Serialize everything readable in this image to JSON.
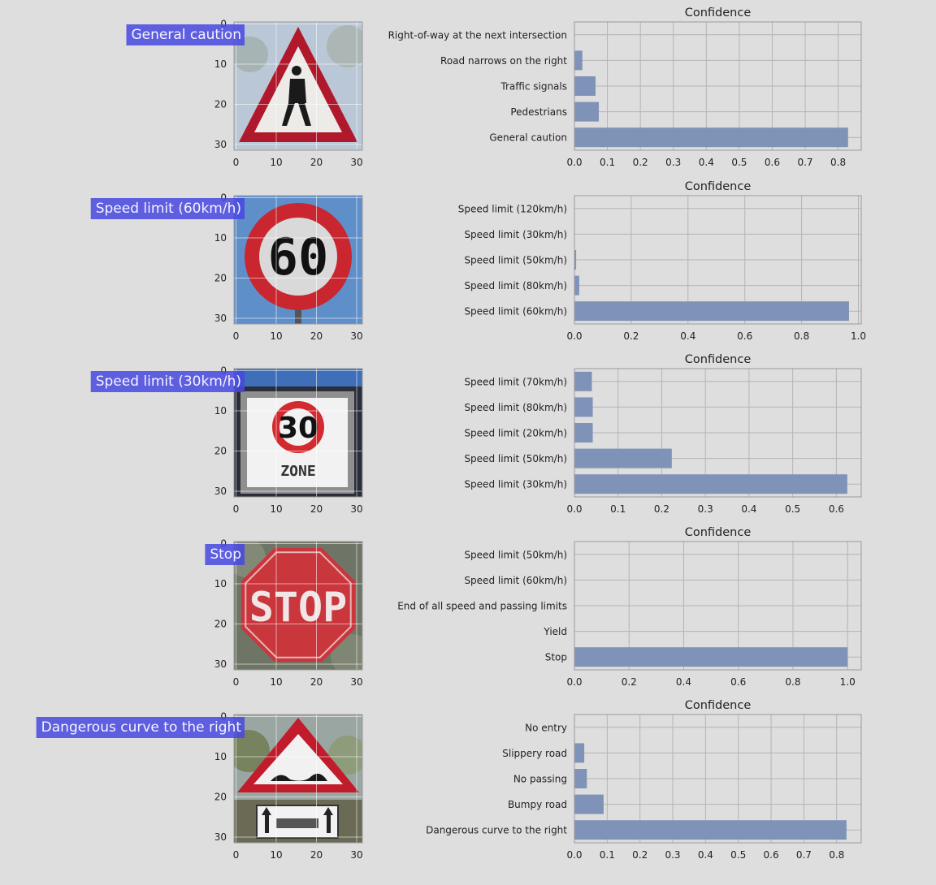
{
  "colors": {
    "background": "#dedede",
    "bar": "#7f93b8",
    "grid": "#b4b4b4",
    "label_bg": "#4848e0"
  },
  "chart_data": [
    {
      "type": "bar",
      "orientation": "horizontal",
      "title": "Confidence",
      "image_label": "General caution",
      "sign": "pedestrian-warning-triangle",
      "image_ticks": [
        "0",
        "10",
        "20",
        "30"
      ],
      "categories": [
        "General caution",
        "Pedestrians",
        "Traffic signals",
        "Road narrows on the right",
        "Right-of-way at the next intersection"
      ],
      "values": [
        0.83,
        0.074,
        0.064,
        0.024,
        0.0
      ],
      "xlim": [
        0,
        0.87
      ],
      "xticks": [
        0.0,
        0.1,
        0.2,
        0.3,
        0.4,
        0.5,
        0.6,
        0.7,
        0.8
      ],
      "xtick_labels": [
        "0.0",
        "0.1",
        "0.2",
        "0.3",
        "0.4",
        "0.5",
        "0.6",
        "0.7",
        "0.8"
      ],
      "grid": true
    },
    {
      "type": "bar",
      "orientation": "horizontal",
      "title": "Confidence",
      "image_label": "Speed limit (60km/h)",
      "sign": "speed-limit-round",
      "sign_text": "60",
      "image_ticks": [
        "0",
        "10",
        "20",
        "30"
      ],
      "categories": [
        "Speed limit (60km/h)",
        "Speed limit (80km/h)",
        "Speed limit (50km/h)",
        "Speed limit (30km/h)",
        "Speed limit (120km/h)"
      ],
      "values": [
        0.967,
        0.017,
        0.006,
        0.0,
        0.0
      ],
      "xlim": [
        0,
        1.01
      ],
      "xticks": [
        0.0,
        0.2,
        0.4,
        0.6,
        0.8,
        1.0
      ],
      "xtick_labels": [
        "0.0",
        "0.2",
        "0.4",
        "0.6",
        "0.8",
        "1.0"
      ],
      "grid": true
    },
    {
      "type": "bar",
      "orientation": "horizontal",
      "title": "Confidence",
      "image_label": "Speed limit (30km/h)",
      "sign": "speed-limit-square",
      "sign_text": "30",
      "sign_subtext": "ZONE",
      "image_ticks": [
        "0",
        "10",
        "20",
        "30"
      ],
      "categories": [
        "Speed limit (30km/h)",
        "Speed limit (50km/h)",
        "Speed limit (20km/h)",
        "Speed limit (80km/h)",
        "Speed limit (70km/h)"
      ],
      "values": [
        0.625,
        0.223,
        0.042,
        0.042,
        0.04
      ],
      "xlim": [
        0,
        0.657
      ],
      "xticks": [
        0.0,
        0.1,
        0.2,
        0.3,
        0.4,
        0.5,
        0.6
      ],
      "xtick_labels": [
        "0.0",
        "0.1",
        "0.2",
        "0.3",
        "0.4",
        "0.5",
        "0.6"
      ],
      "grid": true
    },
    {
      "type": "bar",
      "orientation": "horizontal",
      "title": "Confidence",
      "image_label": "Stop",
      "sign": "stop-octagon",
      "sign_text": "STOP",
      "image_ticks": [
        "0",
        "10",
        "20",
        "30"
      ],
      "categories": [
        "Stop",
        "Yield",
        "End of all speed and passing limits",
        "Speed limit (60km/h)",
        "Speed limit (50km/h)"
      ],
      "values": [
        1.0,
        0.0,
        0.0,
        0.0,
        0.0
      ],
      "xlim": [
        0,
        1.05
      ],
      "xticks": [
        0.0,
        0.2,
        0.4,
        0.6,
        0.8,
        1.0
      ],
      "xtick_labels": [
        "0.0",
        "0.2",
        "0.4",
        "0.6",
        "0.8",
        "1.0"
      ],
      "grid": true
    },
    {
      "type": "bar",
      "orientation": "horizontal",
      "title": "Confidence",
      "image_label": "Dangerous curve to the right",
      "sign": "bumpy-road-triangle",
      "image_ticks": [
        "0",
        "10",
        "20",
        "30"
      ],
      "categories": [
        "Dangerous curve to the right",
        "Bumpy road",
        "No passing",
        "Slippery road",
        "No entry"
      ],
      "values": [
        0.83,
        0.089,
        0.038,
        0.03,
        0.0
      ],
      "xlim": [
        0,
        0.875
      ],
      "xticks": [
        0.0,
        0.1,
        0.2,
        0.3,
        0.4,
        0.5,
        0.6,
        0.7,
        0.8
      ],
      "xtick_labels": [
        "0.0",
        "0.1",
        "0.2",
        "0.3",
        "0.4",
        "0.5",
        "0.6",
        "0.7",
        "0.8"
      ],
      "grid": true
    }
  ]
}
